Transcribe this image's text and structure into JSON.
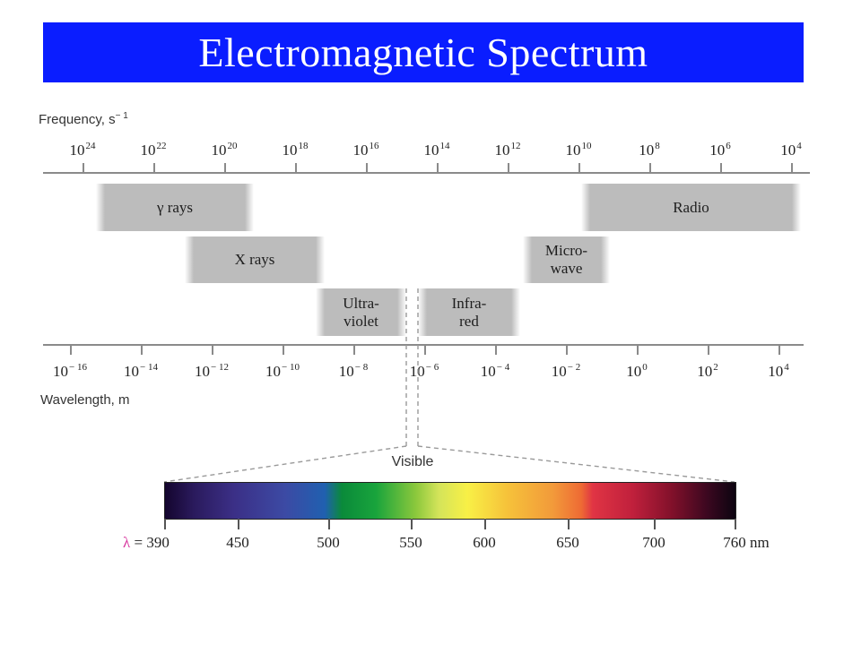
{
  "title": "Electromagnetic Spectrum",
  "colors": {
    "title_bar": "#0a1dff",
    "region_fill": "#bcbcbc",
    "lambda_symbol": "#d83aa0",
    "axis": "#8a8a8a"
  },
  "frequency_axis": {
    "label": "Frequency, s",
    "label_exponent": "− 1",
    "ticks": [
      {
        "base": "10",
        "exp": "24"
      },
      {
        "base": "10",
        "exp": "22"
      },
      {
        "base": "10",
        "exp": "20"
      },
      {
        "base": "10",
        "exp": "18"
      },
      {
        "base": "10",
        "exp": "16"
      },
      {
        "base": "10",
        "exp": "14"
      },
      {
        "base": "10",
        "exp": "12"
      },
      {
        "base": "10",
        "exp": "10"
      },
      {
        "base": "10",
        "exp": "8"
      },
      {
        "base": "10",
        "exp": "6"
      },
      {
        "base": "10",
        "exp": "4"
      }
    ]
  },
  "wavelength_axis": {
    "label": "Wavelength, m",
    "ticks": [
      {
        "base": "10",
        "exp": "− 16"
      },
      {
        "base": "10",
        "exp": "− 14"
      },
      {
        "base": "10",
        "exp": "− 12"
      },
      {
        "base": "10",
        "exp": "− 10"
      },
      {
        "base": "10",
        "exp": "− 8"
      },
      {
        "base": "10",
        "exp": "− 6"
      },
      {
        "base": "10",
        "exp": "− 4"
      },
      {
        "base": "10",
        "exp": "− 2"
      },
      {
        "base": "10",
        "exp": "0"
      },
      {
        "base": "10",
        "exp": "2"
      },
      {
        "base": "10",
        "exp": "4"
      }
    ]
  },
  "regions": [
    {
      "id": "gamma",
      "label": "γ rays"
    },
    {
      "id": "xray",
      "label": "X rays"
    },
    {
      "id": "ultraviolet",
      "label": "Ultra-\nviolet"
    },
    {
      "id": "infrared",
      "label": "Infra-\nred"
    },
    {
      "id": "microwave",
      "label": "Micro-\nwave"
    },
    {
      "id": "radio",
      "label": "Radio"
    }
  ],
  "visible": {
    "label": "Visible",
    "lambda_symbol": "λ",
    "lambda_prefix": " = ",
    "unit": "nm",
    "ticks": [
      "390",
      "450",
      "500",
      "550",
      "600",
      "650",
      "700",
      "760"
    ]
  }
}
